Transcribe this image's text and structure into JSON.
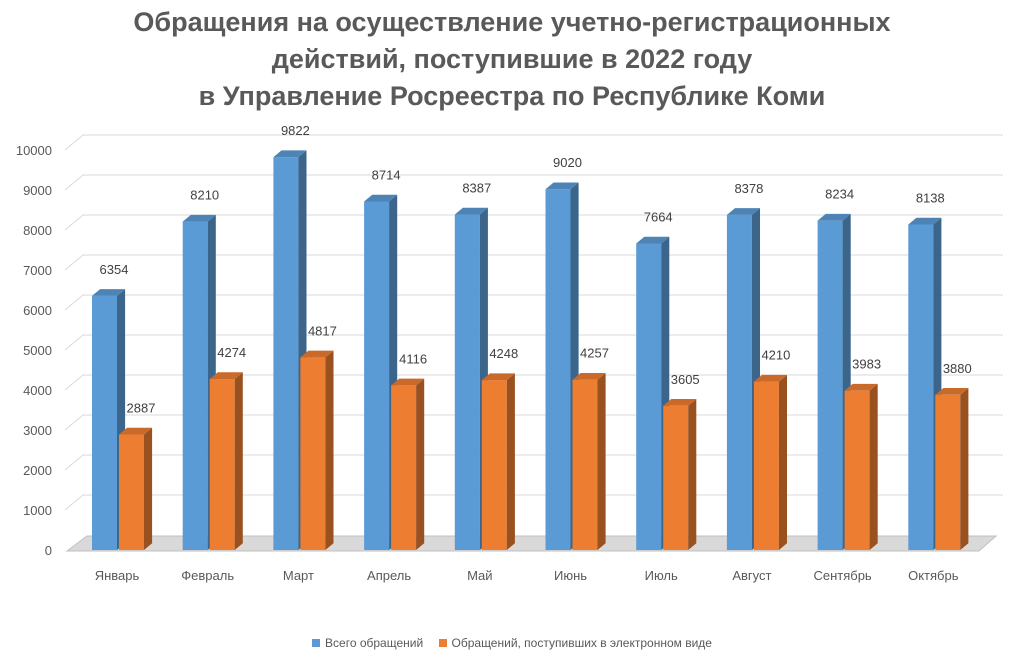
{
  "title_lines": [
    "Обращения на осуществление учетно-регистрационных",
    "действий, поступившие в 2022 году",
    "в Управление Росреестра по Республике Коми"
  ],
  "chart_data": {
    "type": "bar",
    "title": "Обращения на осуществление учетно-регистрационных действий, поступившие в 2022 году в Управление Росреестра по Республике Коми",
    "categories": [
      "Январь",
      "Февраль",
      "Март",
      "Апрель",
      "Май",
      "Июнь",
      "Июль",
      "Август",
      "Сентябрь",
      "Октябрь"
    ],
    "series": [
      {
        "name": "Всего обращений",
        "values": [
          6354,
          8210,
          9822,
          8714,
          8387,
          9020,
          7664,
          8378,
          8234,
          8138
        ],
        "color": "#5B9BD5"
      },
      {
        "name": "Обращений, поступивших в электронном виде",
        "values": [
          2887,
          4274,
          4817,
          4116,
          4248,
          4257,
          3605,
          4210,
          3983,
          3880
        ],
        "color": "#ED7D31"
      }
    ],
    "ylim": [
      0,
      10000
    ],
    "yticks": [
      0,
      1000,
      2000,
      3000,
      4000,
      5000,
      6000,
      7000,
      8000,
      9000,
      10000
    ],
    "grid": true,
    "legend_position": "bottom",
    "data_labels": true,
    "style": "3d-clustered-bar"
  }
}
